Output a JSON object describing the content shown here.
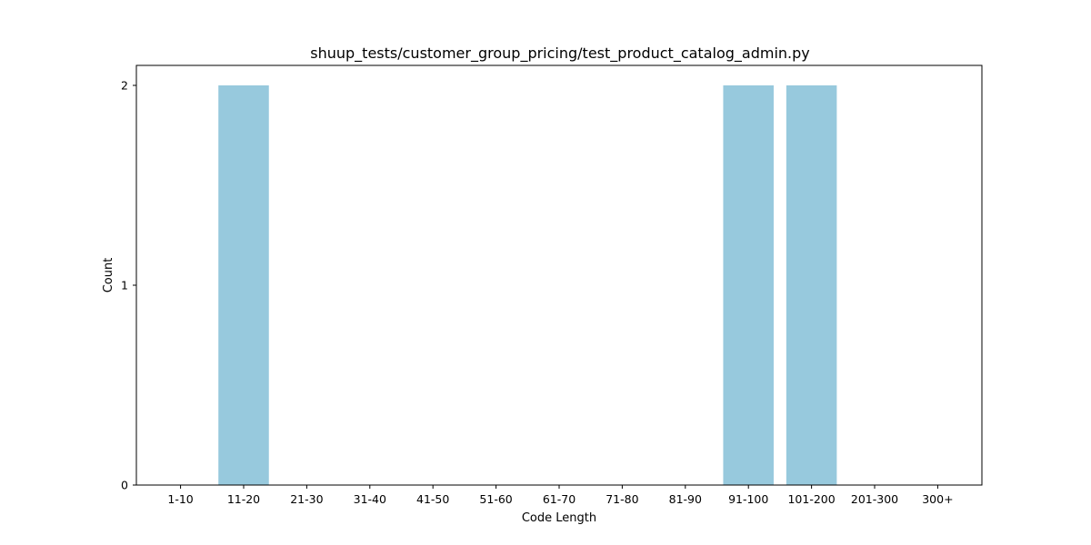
{
  "chart_data": {
    "type": "bar",
    "title": "shuup_tests/customer_group_pricing/test_product_catalog_admin.py",
    "xlabel": "Code Length",
    "ylabel": "Count",
    "categories": [
      "1-10",
      "11-20",
      "21-30",
      "31-40",
      "41-50",
      "51-60",
      "61-70",
      "71-80",
      "81-90",
      "91-100",
      "101-200",
      "201-300",
      "300+"
    ],
    "values": [
      0,
      2,
      0,
      0,
      0,
      0,
      0,
      0,
      0,
      2,
      2,
      0,
      0
    ],
    "yticks": [
      0,
      1,
      2
    ],
    "ylim": [
      0,
      2.1
    ],
    "grid": false,
    "legend": "none",
    "bar_color": "#97c9dd",
    "axis_color": "#000000"
  }
}
